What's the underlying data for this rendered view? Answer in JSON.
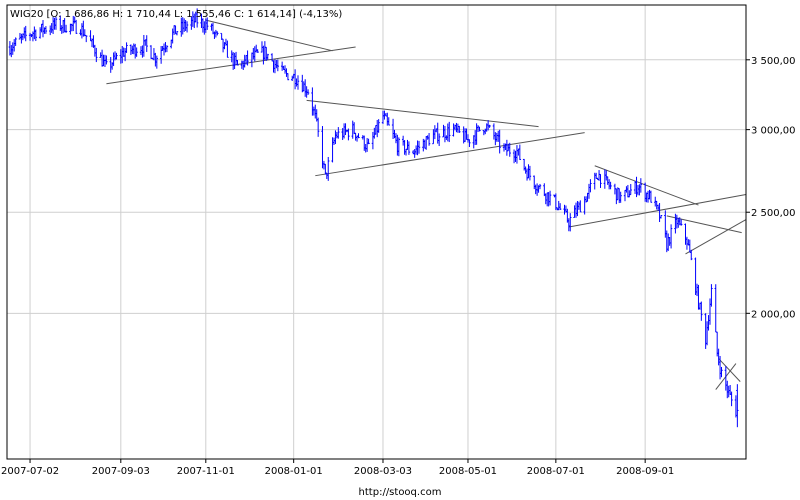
{
  "header": {
    "text": "WIG20 [O: 1 686,86  H: 1 710,44  L: 1 555,46  C: 1 614,14] (-4,13%)"
  },
  "source": {
    "text": "http://stooq.com"
  },
  "chart_data": {
    "type": "ohlc",
    "title": "WIG20 [O: 1 686,86  H: 1 710,44  L: 1 555,46  C: 1 614,14] (-4,13%)",
    "xlabel": "",
    "ylabel": "",
    "x_ticks": [
      "2007-07-02",
      "2007-09-03",
      "2007-11-01",
      "2008-01-01",
      "2008-03-03",
      "2008-05-01",
      "2008-07-01",
      "2008-09-01"
    ],
    "y_ticks": [
      {
        "value": 3500,
        "label": "3 500,00"
      },
      {
        "value": 3000,
        "label": "3 000,00"
      },
      {
        "value": 2500,
        "label": "2 500,00"
      },
      {
        "value": 2000,
        "label": "2 000,00"
      }
    ],
    "y_scale": "log",
    "ylim": [
      1450,
      3950
    ],
    "xlim": [
      "2007-06-16",
      "2008-11-10"
    ],
    "grid": true,
    "series_color": "#0000ff",
    "last_bar": {
      "open": 1686.86,
      "high": 1710.44,
      "low": 1555.46,
      "close": 1614.14,
      "change": "-4,13%"
    },
    "price_path": [
      [
        "2007-06-18",
        3600
      ],
      [
        "2007-07-02",
        3710
      ],
      [
        "2007-07-20",
        3780
      ],
      [
        "2007-08-06",
        3760
      ],
      [
        "2007-08-15",
        3600
      ],
      [
        "2007-08-24",
        3440
      ],
      [
        "2007-09-05",
        3560
      ],
      [
        "2007-09-20",
        3610
      ],
      [
        "2007-09-27",
        3520
      ],
      [
        "2007-10-10",
        3720
      ],
      [
        "2007-10-25",
        3820
      ],
      [
        "2007-11-03",
        3770
      ],
      [
        "2007-11-12",
        3620
      ],
      [
        "2007-11-23",
        3450
      ],
      [
        "2007-12-03",
        3520
      ],
      [
        "2007-12-12",
        3560
      ],
      [
        "2007-12-24",
        3400
      ],
      [
        "2008-01-02",
        3370
      ],
      [
        "2008-01-11",
        3270
      ],
      [
        "2008-01-16",
        3080
      ],
      [
        "2008-01-23",
        2700
      ],
      [
        "2008-01-30",
        2960
      ],
      [
        "2008-02-11",
        3000
      ],
      [
        "2008-02-22",
        2880
      ],
      [
        "2008-03-03",
        3090
      ],
      [
        "2008-03-13",
        2900
      ],
      [
        "2008-03-24",
        2860
      ],
      [
        "2008-04-07",
        2960
      ],
      [
        "2008-04-21",
        3000
      ],
      [
        "2008-05-01",
        2930
      ],
      [
        "2008-05-13",
        3030
      ],
      [
        "2008-05-26",
        2870
      ],
      [
        "2008-06-04",
        2860
      ],
      [
        "2008-06-09",
        2760
      ],
      [
        "2008-06-18",
        2650
      ],
      [
        "2008-06-30",
        2560
      ],
      [
        "2008-07-10",
        2450
      ],
      [
        "2008-07-21",
        2570
      ],
      [
        "2008-07-30",
        2720
      ],
      [
        "2008-08-06",
        2660
      ],
      [
        "2008-08-15",
        2580
      ],
      [
        "2008-08-27",
        2650
      ],
      [
        "2008-09-05",
        2580
      ],
      [
        "2008-09-11",
        2480
      ],
      [
        "2008-09-16",
        2330
      ],
      [
        "2008-09-23",
        2450
      ],
      [
        "2008-09-30",
        2350
      ],
      [
        "2008-10-03",
        2240
      ],
      [
        "2008-10-08",
        2050
      ],
      [
        "2008-10-13",
        1890
      ],
      [
        "2008-10-17",
        2100
      ],
      [
        "2008-10-21",
        1830
      ],
      [
        "2008-10-24",
        1750
      ],
      [
        "2008-10-28",
        1690
      ],
      [
        "2008-10-31",
        1650
      ],
      [
        "2008-11-04",
        1600
      ]
    ],
    "trendlines": [
      [
        [
          "2007-11-01",
          3820
        ],
        [
          "2008-01-28",
          3570
        ]
      ],
      [
        [
          "2007-08-24",
          3320
        ],
        [
          "2008-02-13",
          3600
        ]
      ],
      [
        [
          "2008-01-10",
          3200
        ],
        [
          "2008-06-19",
          3020
        ]
      ],
      [
        [
          "2008-01-16",
          2710
        ],
        [
          "2008-07-21",
          2980
        ]
      ],
      [
        [
          "2008-07-10",
          2420
        ],
        [
          "2008-11-10",
          2600
        ]
      ],
      [
        [
          "2008-07-28",
          2770
        ],
        [
          "2008-10-08",
          2540
        ]
      ],
      [
        [
          "2008-09-16",
          2480
        ],
        [
          "2008-11-07",
          2390
        ]
      ],
      [
        [
          "2008-09-29",
          2280
        ],
        [
          "2008-11-10",
          2460
        ]
      ],
      [
        [
          "2008-10-22",
          1810
        ],
        [
          "2008-11-06",
          1720
        ]
      ],
      [
        [
          "2008-10-20",
          1690
        ],
        [
          "2008-11-03",
          1790
        ]
      ]
    ]
  }
}
